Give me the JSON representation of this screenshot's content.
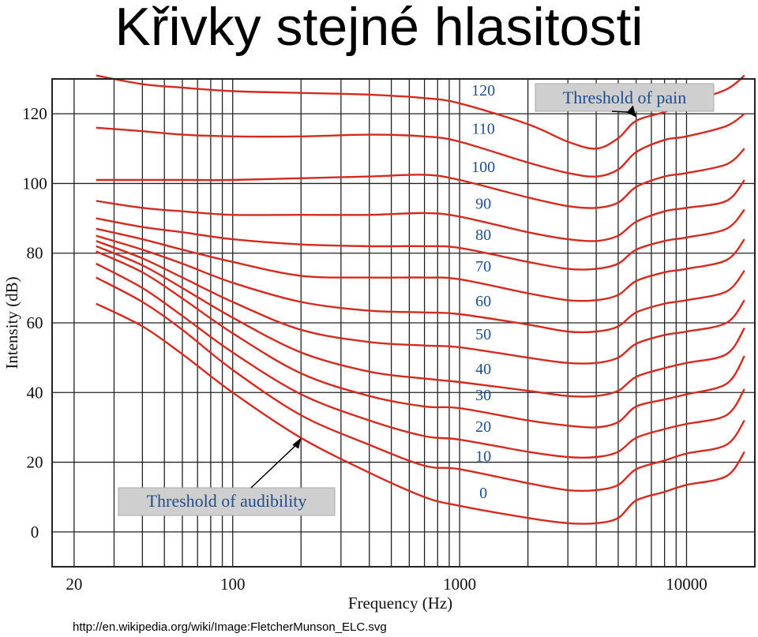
{
  "page": {
    "title": "Křivky stejné hlasitosti",
    "credit": "http://en.wikipedia.org/wiki/Image:FletcherMunson_ELC.svg"
  },
  "chart_data": {
    "type": "line",
    "xscale": "log",
    "xlim": [
      16,
      20000
    ],
    "ylim": [
      -10,
      130
    ],
    "xlabel": "Frequency (Hz)",
    "ylabel": "Intensity (dB)",
    "xticks": [
      20,
      100,
      1000,
      10000
    ],
    "xtick_labels": [
      "20",
      "100",
      "1000",
      "10000"
    ],
    "yticks": [
      0,
      20,
      40,
      60,
      80,
      100,
      120
    ],
    "ytick_labels": [
      "0",
      "20",
      "40",
      "60",
      "80",
      "100",
      "120"
    ],
    "grid": true,
    "line_color": "#d42a20",
    "annotation_color": "#1f4e8c",
    "annotations": [
      {
        "text": "Threshold of pain",
        "points_to": [
          6000,
          119
        ]
      },
      {
        "text": "Threshold of audibility",
        "points_to": [
          200,
          27
        ]
      }
    ],
    "x": [
      25,
      40,
      60,
      100,
      200,
      400,
      700,
      1000,
      2000,
      3000,
      4000,
      5000,
      6000,
      8000,
      10000,
      15000,
      18000
    ],
    "series": [
      {
        "name": "120",
        "values": [
          131,
          128.5,
          127.5,
          126.5,
          126,
          125.5,
          124.5,
          123,
          117,
          112,
          110,
          113,
          118,
          120.5,
          123,
          127,
          131
        ]
      },
      {
        "name": "110",
        "values": [
          116,
          115,
          114,
          113.5,
          113.5,
          114,
          113.5,
          112,
          106,
          103,
          102,
          104,
          109,
          112.5,
          113.5,
          116.5,
          120
        ]
      },
      {
        "name": "100",
        "values": [
          101,
          101,
          101,
          101,
          101.5,
          102,
          102.5,
          101,
          96,
          93.5,
          93,
          94.5,
          99,
          102,
          103,
          105.5,
          110
        ]
      },
      {
        "name": "90",
        "values": [
          95,
          93,
          92,
          91,
          91,
          91,
          91.5,
          90.5,
          86,
          84,
          83.5,
          85,
          89,
          92,
          93,
          95,
          101
        ]
      },
      {
        "name": "80",
        "values": [
          90,
          87.5,
          86,
          84,
          82.5,
          82,
          82,
          81.5,
          77.5,
          75.5,
          75.5,
          77,
          81,
          83.5,
          84.5,
          87,
          92.5
        ]
      },
      {
        "name": "70",
        "values": [
          87,
          84,
          81,
          77.5,
          73.5,
          73,
          73,
          72.5,
          68.5,
          66.5,
          66.5,
          68,
          72,
          74.5,
          75.5,
          78,
          84
        ]
      },
      {
        "name": "60",
        "values": [
          85,
          81,
          77,
          71.5,
          66,
          63.5,
          63,
          62.5,
          59.5,
          57.5,
          57.5,
          59,
          63,
          65.5,
          66.5,
          69,
          75
        ]
      },
      {
        "name": "50",
        "values": [
          83.5,
          78.5,
          73,
          66,
          58,
          54.5,
          53.5,
          53,
          50,
          48.5,
          48.5,
          50,
          54,
          56.5,
          57.5,
          60,
          66.5
        ]
      },
      {
        "name": "40",
        "values": [
          82,
          76.5,
          70,
          61.5,
          51.5,
          46,
          44,
          43,
          40.5,
          39,
          39,
          40.5,
          44.5,
          47,
          48.5,
          51,
          58.5
        ]
      },
      {
        "name": "30",
        "values": [
          80.5,
          74.5,
          67,
          57,
          45.5,
          39,
          36,
          35.5,
          32,
          30.5,
          30,
          31.5,
          36,
          38,
          39.5,
          42.5,
          50.5
        ]
      },
      {
        "name": "20",
        "values": [
          77,
          70,
          62,
          51.5,
          39.5,
          32,
          27.5,
          26.5,
          23,
          21.5,
          21.5,
          23,
          27,
          29.5,
          31,
          33.5,
          41
        ]
      },
      {
        "name": "10",
        "values": [
          73,
          66,
          58,
          46.5,
          33.5,
          25,
          19,
          18,
          14,
          12,
          12,
          13.5,
          18,
          20.5,
          22.5,
          25,
          32
        ]
      },
      {
        "name": "0",
        "values": [
          65.5,
          59,
          51,
          40,
          27,
          17,
          10,
          7.5,
          4,
          2.5,
          2.5,
          4,
          9,
          11.5,
          13.5,
          16,
          23
        ]
      }
    ]
  }
}
